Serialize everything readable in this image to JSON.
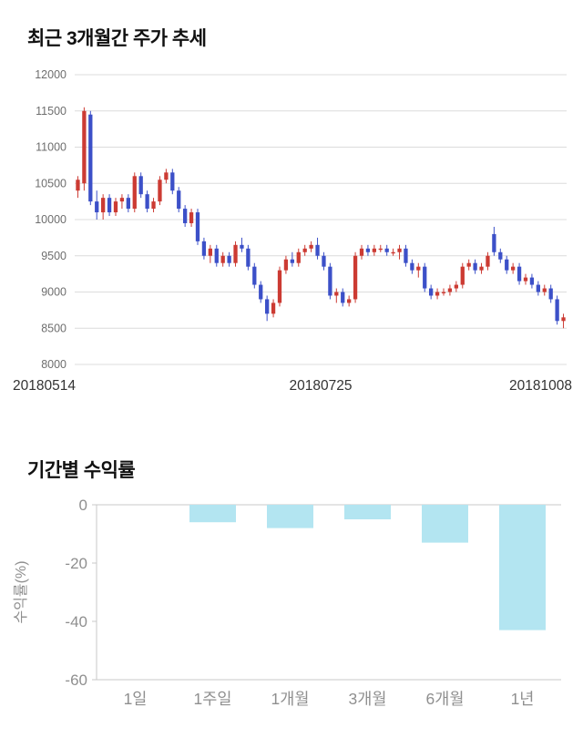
{
  "page": {
    "price_section_title": "최근 3개월간 주가 추세",
    "returns_section_title": "기간별 수익률"
  },
  "colors": {
    "up": "#cc3b33",
    "down": "#3c50c8",
    "bar": "#b3e5f1",
    "grid": "#dcdcdc",
    "axis_line": "#c8c8c8",
    "axis_text": "#6e6e6e",
    "date_text": "#333333",
    "bar_axis_text": "#8f8f8f"
  },
  "chart_data": [
    {
      "type": "candlestick",
      "title": "최근 3개월간 주가 추세",
      "ylim": [
        8000,
        12000
      ],
      "ytick_step": 500,
      "yticks": [
        8000,
        8500,
        9000,
        9500,
        10000,
        10500,
        11000,
        11500,
        12000
      ],
      "xtick_labels": [
        "20180514",
        "20180725",
        "20181008"
      ],
      "grid": true,
      "legend": "none",
      "candles": [
        [
          10400,
          10600,
          10300,
          10550
        ],
        [
          10500,
          11550,
          10400,
          11500
        ],
        [
          11450,
          11500,
          10200,
          10250
        ],
        [
          10250,
          10400,
          10000,
          10100
        ],
        [
          10100,
          10350,
          10000,
          10300
        ],
        [
          10300,
          10350,
          10050,
          10100
        ],
        [
          10100,
          10300,
          10050,
          10250
        ],
        [
          10250,
          10350,
          10150,
          10300
        ],
        [
          10300,
          10350,
          10100,
          10150
        ],
        [
          10150,
          10650,
          10100,
          10600
        ],
        [
          10600,
          10650,
          10300,
          10350
        ],
        [
          10350,
          10400,
          10100,
          10150
        ],
        [
          10150,
          10300,
          10100,
          10250
        ],
        [
          10250,
          10600,
          10200,
          10550
        ],
        [
          10550,
          10700,
          10500,
          10650
        ],
        [
          10650,
          10700,
          10350,
          10400
        ],
        [
          10400,
          10450,
          10100,
          10150
        ],
        [
          10150,
          10200,
          9900,
          9950
        ],
        [
          9950,
          10150,
          9900,
          10100
        ],
        [
          10100,
          10150,
          9650,
          9700
        ],
        [
          9700,
          9750,
          9450,
          9500
        ],
        [
          9500,
          9650,
          9400,
          9600
        ],
        [
          9600,
          9650,
          9350,
          9400
        ],
        [
          9400,
          9550,
          9350,
          9500
        ],
        [
          9500,
          9550,
          9350,
          9400
        ],
        [
          9400,
          9700,
          9350,
          9650
        ],
        [
          9650,
          9750,
          9550,
          9600
        ],
        [
          9600,
          9650,
          9300,
          9350
        ],
        [
          9350,
          9400,
          9050,
          9100
        ],
        [
          9100,
          9150,
          8850,
          8900
        ],
        [
          8900,
          8950,
          8600,
          8700
        ],
        [
          8700,
          8900,
          8650,
          8850
        ],
        [
          8850,
          9350,
          8800,
          9300
        ],
        [
          9300,
          9500,
          9250,
          9450
        ],
        [
          9450,
          9550,
          9350,
          9400
        ],
        [
          9400,
          9600,
          9350,
          9550
        ],
        [
          9550,
          9650,
          9500,
          9600
        ],
        [
          9600,
          9700,
          9550,
          9650
        ],
        [
          9650,
          9750,
          9450,
          9500
        ],
        [
          9500,
          9550,
          9300,
          9350
        ],
        [
          9350,
          9400,
          8900,
          8950
        ],
        [
          8950,
          9050,
          8850,
          9000
        ],
        [
          9000,
          9050,
          8800,
          8850
        ],
        [
          8850,
          8950,
          8800,
          8900
        ],
        [
          8900,
          9550,
          8850,
          9500
        ],
        [
          9500,
          9650,
          9450,
          9600
        ],
        [
          9600,
          9650,
          9500,
          9550
        ],
        [
          9550,
          9650,
          9500,
          9600
        ],
        [
          9600,
          9650,
          9550,
          9600
        ],
        [
          9600,
          9650,
          9500,
          9550
        ],
        [
          9550,
          9600,
          9500,
          9550
        ],
        [
          9550,
          9650,
          9450,
          9600
        ],
        [
          9600,
          9650,
          9350,
          9400
        ],
        [
          9400,
          9450,
          9250,
          9300
        ],
        [
          9300,
          9400,
          9200,
          9350
        ],
        [
          9350,
          9400,
          9000,
          9050
        ],
        [
          9050,
          9100,
          8900,
          8950
        ],
        [
          8950,
          9050,
          8900,
          9000
        ],
        [
          9000,
          9050,
          8950,
          9000
        ],
        [
          9000,
          9100,
          8950,
          9050
        ],
        [
          9050,
          9150,
          9000,
          9100
        ],
        [
          9100,
          9400,
          9050,
          9350
        ],
        [
          9350,
          9450,
          9300,
          9400
        ],
        [
          9400,
          9450,
          9250,
          9300
        ],
        [
          9300,
          9400,
          9250,
          9350
        ],
        [
          9350,
          9550,
          9300,
          9500
        ],
        [
          9800,
          9900,
          9500,
          9550
        ],
        [
          9550,
          9600,
          9400,
          9450
        ],
        [
          9450,
          9500,
          9250,
          9300
        ],
        [
          9300,
          9400,
          9250,
          9350
        ],
        [
          9350,
          9400,
          9100,
          9150
        ],
        [
          9150,
          9250,
          9100,
          9200
        ],
        [
          9200,
          9250,
          9050,
          9100
        ],
        [
          9100,
          9150,
          8950,
          9000
        ],
        [
          9000,
          9100,
          8950,
          9050
        ],
        [
          9050,
          9100,
          8850,
          8900
        ],
        [
          8900,
          8950,
          8550,
          8600
        ],
        [
          8600,
          8700,
          8500,
          8650
        ]
      ]
    },
    {
      "type": "bar",
      "title": "기간별 수익률",
      "categories": [
        "1일",
        "1주일",
        "1개월",
        "3개월",
        "6개월",
        "1년"
      ],
      "values": [
        0,
        -6,
        -8,
        -5,
        -13,
        -43
      ],
      "ylabel": "수익률(%)",
      "ylim": [
        -60,
        0
      ],
      "yticks": [
        0,
        -20,
        -40,
        -60
      ],
      "grid": false,
      "legend": "none"
    }
  ]
}
